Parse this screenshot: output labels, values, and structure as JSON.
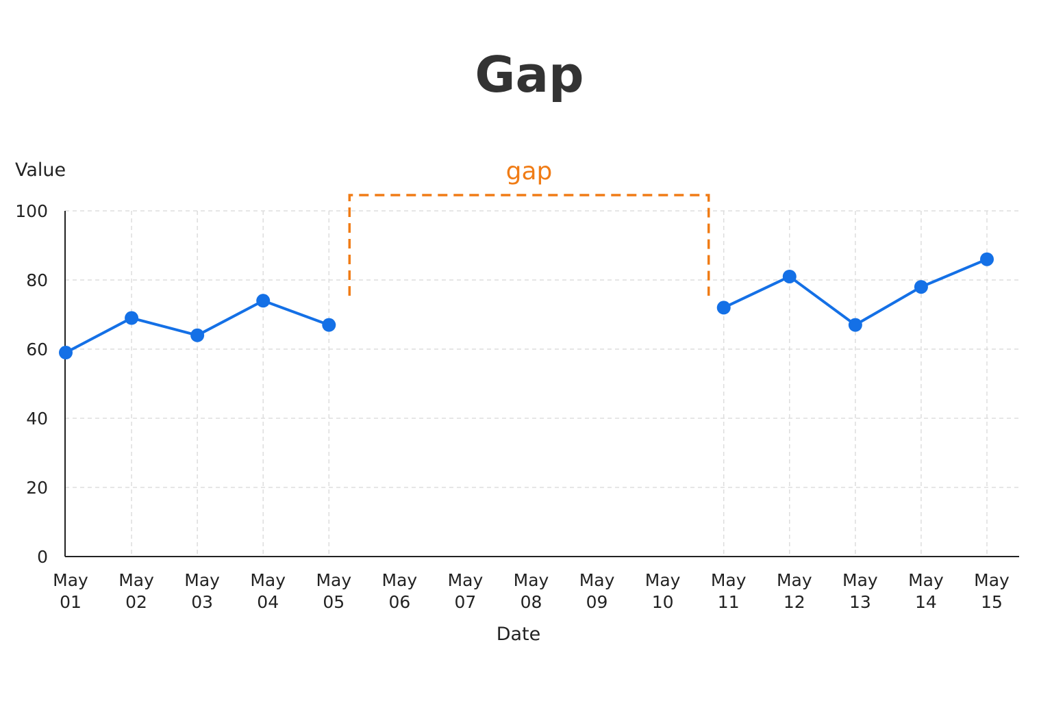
{
  "chart_data": {
    "type": "line",
    "title": "Gap",
    "xlabel": "Date",
    "ylabel": "Value",
    "ylim": [
      0,
      100
    ],
    "yticks": [
      0,
      20,
      40,
      60,
      80,
      100
    ],
    "grid": true,
    "categories": [
      [
        "May",
        "01"
      ],
      [
        "May",
        "02"
      ],
      [
        "May",
        "03"
      ],
      [
        "May",
        "04"
      ],
      [
        "May",
        "05"
      ],
      [
        "May",
        "06"
      ],
      [
        "May",
        "07"
      ],
      [
        "May",
        "08"
      ],
      [
        "May",
        "09"
      ],
      [
        "May",
        "10"
      ],
      [
        "May",
        "11"
      ],
      [
        "May",
        "12"
      ],
      [
        "May",
        "13"
      ],
      [
        "May",
        "14"
      ],
      [
        "May",
        "15"
      ]
    ],
    "series": [
      {
        "color": "#1470e6",
        "values": [
          59,
          69,
          64,
          74,
          67,
          null,
          null,
          null,
          null,
          null,
          72,
          81,
          67,
          78,
          86
        ]
      }
    ],
    "annotation": {
      "label": "gap",
      "color": "#f07c16",
      "from": "May 05",
      "to": "May 11"
    }
  }
}
